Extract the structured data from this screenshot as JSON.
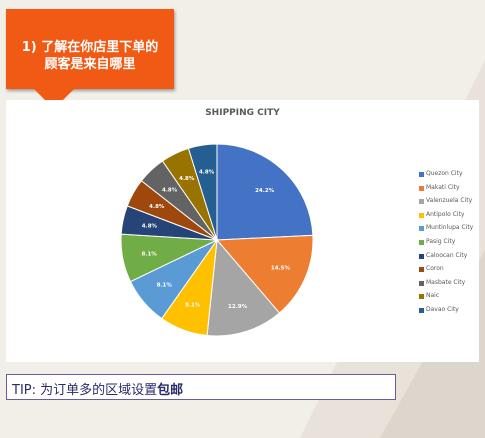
{
  "callout": {
    "line1": "1) 了解在你店里下单的",
    "line2": "顾客是来自哪里"
  },
  "tip": {
    "prefix": "TIP: 为订单多的区域设置",
    "emphasis": "包邮"
  },
  "chart_data": {
    "type": "pie",
    "title": "SHIPPING CITY",
    "legend_position": "right",
    "slices": [
      {
        "label": "Quezon City",
        "value": 24.2,
        "display": "24.2%",
        "color": "#4472c4"
      },
      {
        "label": "Makati City",
        "value": 14.5,
        "display": "14.5%",
        "color": "#ed7d31"
      },
      {
        "label": "Valenzuela City",
        "value": 12.9,
        "display": "12.9%",
        "color": "#a5a5a5"
      },
      {
        "label": "Antipolo City",
        "value": 8.1,
        "display": "8.1%",
        "color": "#ffc000"
      },
      {
        "label": "Muntinlupa City",
        "value": 8.1,
        "display": "8.1%",
        "color": "#5b9bd5"
      },
      {
        "label": "Pasig City",
        "value": 8.1,
        "display": "8.1%",
        "color": "#70ad47"
      },
      {
        "label": "Caloocan City",
        "value": 4.8,
        "display": "4.8%",
        "color": "#264478"
      },
      {
        "label": "Coron",
        "value": 4.8,
        "display": "4.8%",
        "color": "#9e480e"
      },
      {
        "label": "Masbate City",
        "value": 4.8,
        "display": "4.8%",
        "color": "#636363"
      },
      {
        "label": "Naic",
        "value": 4.8,
        "display": "4.8%",
        "color": "#997300"
      },
      {
        "label": "Davao City",
        "value": 4.8,
        "display": "4.8%",
        "color": "#255e91"
      }
    ]
  }
}
